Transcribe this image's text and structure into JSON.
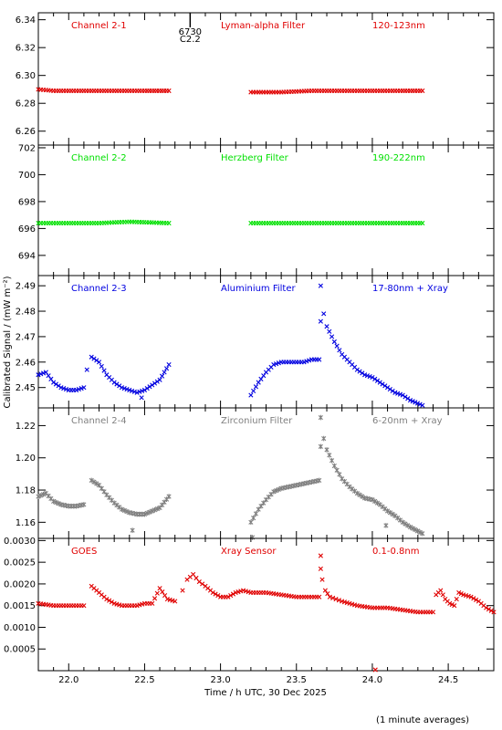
{
  "chart_data": {
    "type": "scatter",
    "x_axis": {
      "label": "Time / h UTC, 30 Dec 2025",
      "range": [
        21.8,
        24.8
      ],
      "ticks": [
        22.0,
        22.5,
        23.0,
        23.5,
        24.0,
        24.5
      ],
      "tick_labels": [
        "22.0",
        "22.5",
        "23.0",
        "23.5",
        "24.0",
        "24.5"
      ]
    },
    "y_axis_label": "Calibrated Signal / (mW m⁻²)",
    "footnote": "(1 minute averages)",
    "annotation": {
      "lines": [
        "6730",
        "C2.2"
      ],
      "x": 22.8
    },
    "panels": [
      {
        "id": "ch2-1",
        "color": "#e00000",
        "marker": "x",
        "labels": [
          "Channel 2-1",
          "Lyman-alpha Filter",
          "120-123nm"
        ],
        "ylim": [
          6.25,
          6.345
        ],
        "yticks": [
          6.26,
          6.28,
          6.3,
          6.32,
          6.34
        ],
        "ytick_labels": [
          "6.26",
          "6.28",
          "6.30",
          "6.32",
          "6.34"
        ],
        "segments": [
          {
            "x": [
              21.8,
              21.9,
              22.0,
              22.1,
              22.2,
              22.3,
              22.4,
              22.5,
              22.66
            ],
            "y": [
              6.29,
              6.289,
              6.289,
              6.289,
              6.289,
              6.289,
              6.289,
              6.289,
              6.289
            ]
          },
          {
            "x": [
              23.2,
              23.4,
              23.6,
              23.8,
              24.0,
              24.2,
              24.33
            ],
            "y": [
              6.288,
              6.288,
              6.289,
              6.289,
              6.289,
              6.289,
              6.289
            ]
          }
        ],
        "outliers": []
      },
      {
        "id": "ch2-2",
        "color": "#00e000",
        "marker": "x",
        "labels": [
          "Channel 2-2",
          "Herzberg Filter",
          "190-222nm"
        ],
        "ylim": [
          692.5,
          702.2
        ],
        "yticks": [
          694,
          696,
          698,
          700,
          702
        ],
        "ytick_labels": [
          "694",
          "696",
          "698",
          "700",
          "702"
        ],
        "segments": [
          {
            "x": [
              21.8,
              22.0,
              22.2,
              22.4,
              22.66
            ],
            "y": [
              696.4,
              696.4,
              696.4,
              696.5,
              696.4
            ]
          },
          {
            "x": [
              23.2,
              23.4,
              23.6,
              23.8,
              24.0,
              24.2,
              24.33
            ],
            "y": [
              696.4,
              696.4,
              696.4,
              696.4,
              696.4,
              696.4,
              696.4
            ]
          }
        ],
        "outliers": []
      },
      {
        "id": "ch2-3",
        "color": "#0000e0",
        "marker": "x",
        "labels": [
          "Channel 2-3",
          "Aluminium Filter",
          "17-80nm + Xray"
        ],
        "ylim": [
          2.442,
          2.494
        ],
        "yticks": [
          2.45,
          2.46,
          2.47,
          2.48,
          2.49
        ],
        "ytick_labels": [
          "2.45",
          "2.46",
          "2.47",
          "2.48",
          "2.49"
        ],
        "segments": [
          {
            "x": [
              21.8,
              21.85,
              21.9,
              21.95,
              22.0,
              22.05,
              22.1
            ],
            "y": [
              2.455,
              2.456,
              2.452,
              2.45,
              2.449,
              2.449,
              2.45
            ]
          },
          {
            "x": [
              22.15,
              22.2,
              22.25,
              22.3,
              22.35,
              22.4,
              22.45,
              22.5,
              22.55,
              22.6,
              22.66
            ],
            "y": [
              2.462,
              2.46,
              2.455,
              2.452,
              2.45,
              2.449,
              2.448,
              2.449,
              2.451,
              2.453,
              2.459
            ]
          },
          {
            "x": [
              23.2,
              23.25,
              23.3,
              23.35,
              23.4,
              23.45,
              23.5,
              23.55,
              23.6,
              23.65
            ],
            "y": [
              2.447,
              2.452,
              2.456,
              2.459,
              2.46,
              2.46,
              2.46,
              2.46,
              2.461,
              2.461
            ]
          },
          {
            "x": [
              23.66,
              23.68,
              23.7,
              23.75,
              23.8,
              23.85,
              23.9,
              23.95,
              24.0,
              24.05,
              24.1,
              24.15,
              24.2,
              24.25,
              24.33
            ],
            "y": [
              2.476,
              2.479,
              2.474,
              2.468,
              2.463,
              2.46,
              2.457,
              2.455,
              2.454,
              2.452,
              2.45,
              2.448,
              2.447,
              2.445,
              2.443
            ]
          }
        ],
        "outliers": [
          {
            "x": 22.12,
            "y": 2.457
          },
          {
            "x": 22.48,
            "y": 2.446
          },
          {
            "x": 23.66,
            "y": 2.49
          }
        ]
      },
      {
        "id": "ch2-4",
        "color": "#808080",
        "marker": "asterisk",
        "labels": [
          "Channel 2-4",
          "Zirconium Filter",
          "6-20nm + Xray"
        ],
        "ylim": [
          1.15,
          1.231
        ],
        "yticks": [
          1.16,
          1.18,
          1.2,
          1.22
        ],
        "ytick_labels": [
          "1.16",
          "1.18",
          "1.20",
          "1.22"
        ],
        "segments": [
          {
            "x": [
              21.8,
              21.85,
              21.9,
              21.95,
              22.0,
              22.05,
              22.1
            ],
            "y": [
              1.176,
              1.178,
              1.173,
              1.171,
              1.17,
              1.17,
              1.171
            ]
          },
          {
            "x": [
              22.15,
              22.2,
              22.25,
              22.3,
              22.35,
              22.4,
              22.45,
              22.5,
              22.55,
              22.6,
              22.66
            ],
            "y": [
              1.186,
              1.183,
              1.177,
              1.172,
              1.168,
              1.166,
              1.165,
              1.165,
              1.167,
              1.169,
              1.176
            ]
          },
          {
            "x": [
              23.2,
              23.25,
              23.3,
              23.35,
              23.4,
              23.45,
              23.5,
              23.55,
              23.6,
              23.65
            ],
            "y": [
              1.16,
              1.168,
              1.174,
              1.179,
              1.181,
              1.182,
              1.183,
              1.184,
              1.185,
              1.186
            ]
          },
          {
            "x": [
              23.66,
              23.68,
              23.7,
              23.75,
              23.8,
              23.85,
              23.9,
              23.95,
              24.0,
              24.05,
              24.1,
              24.15,
              24.2,
              24.25,
              24.33
            ],
            "y": [
              1.207,
              1.212,
              1.205,
              1.195,
              1.187,
              1.182,
              1.178,
              1.175,
              1.174,
              1.171,
              1.167,
              1.164,
              1.16,
              1.157,
              1.153
            ]
          }
        ],
        "outliers": [
          {
            "x": 22.42,
            "y": 1.155
          },
          {
            "x": 23.21,
            "y": 1.15
          },
          {
            "x": 23.66,
            "y": 1.225
          },
          {
            "x": 24.09,
            "y": 1.158
          }
        ]
      },
      {
        "id": "goes",
        "color": "#e00000",
        "marker": "x",
        "labels": [
          "GOES",
          "Xray Sensor",
          "0.1-0.8nm"
        ],
        "ylim": [
          0.0,
          0.00305
        ],
        "yticks": [
          0.0005,
          0.001,
          0.0015,
          0.002,
          0.0025,
          0.003
        ],
        "ytick_labels": [
          "0.0005",
          "0.0010",
          "0.0015",
          "0.0020",
          "0.0025",
          "0.0030"
        ],
        "segments": [
          {
            "x": [
              21.8,
              21.9,
              22.0,
              22.1
            ],
            "y": [
              0.00155,
              0.0015,
              0.0015,
              0.0015
            ]
          },
          {
            "x": [
              22.15,
              22.2,
              22.25,
              22.3,
              22.35,
              22.4,
              22.45,
              22.5,
              22.55,
              22.6,
              22.65,
              22.7
            ],
            "y": [
              0.00195,
              0.0018,
              0.00165,
              0.00155,
              0.0015,
              0.0015,
              0.0015,
              0.00155,
              0.00155,
              0.0019,
              0.00165,
              0.0016
            ]
          },
          {
            "x": [
              22.78,
              22.82,
              22.86,
              22.9,
              22.95,
              23.0,
              23.05,
              23.1,
              23.15,
              23.2,
              23.3,
              23.4,
              23.5,
              23.6,
              23.65
            ],
            "y": [
              0.0021,
              0.00222,
              0.00205,
              0.00195,
              0.0018,
              0.0017,
              0.0017,
              0.0018,
              0.00185,
              0.0018,
              0.0018,
              0.00175,
              0.0017,
              0.0017,
              0.0017
            ]
          },
          {
            "x": [
              23.66,
              23.67,
              23.69,
              23.72,
              23.76,
              23.8,
              23.9,
              24.0,
              24.1,
              24.2,
              24.3,
              24.4
            ],
            "y": [
              0.00235,
              0.0021,
              0.00185,
              0.0017,
              0.00165,
              0.0016,
              0.0015,
              0.00145,
              0.00145,
              0.0014,
              0.00135,
              0.00135
            ]
          },
          {
            "x": [
              24.42,
              24.45,
              24.48,
              24.51,
              24.54,
              24.57,
              24.6,
              24.65,
              24.7,
              24.75,
              24.8
            ],
            "y": [
              0.00175,
              0.00185,
              0.00165,
              0.00155,
              0.0015,
              0.0018,
              0.00175,
              0.0017,
              0.0016,
              0.00145,
              0.00135
            ]
          }
        ],
        "outliers": [
          {
            "x": 22.75,
            "y": 0.00185
          },
          {
            "x": 23.66,
            "y": 0.00265
          },
          {
            "x": 24.02,
            "y": 0.0
          }
        ]
      }
    ]
  }
}
